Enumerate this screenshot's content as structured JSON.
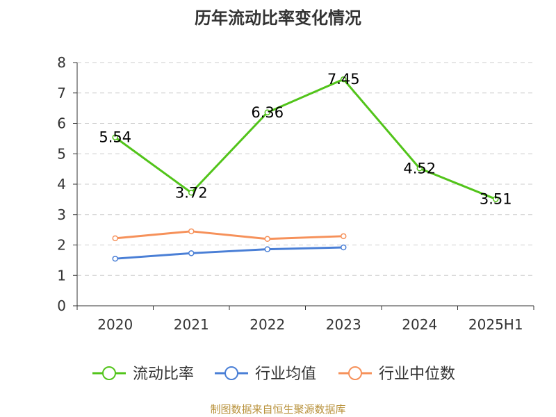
{
  "chart_data": {
    "type": "line",
    "title": "历年流动比率变化情况",
    "categories": [
      "2020",
      "2021",
      "2022",
      "2023",
      "2024",
      "2025H1"
    ],
    "ylim": [
      0,
      8
    ],
    "yticks": [
      "0",
      "1",
      "2",
      "3",
      "4",
      "5",
      "6",
      "7",
      "8"
    ],
    "grid": true,
    "legend_position": "bottom",
    "series": [
      {
        "name": "流动比率",
        "color": "#52c41a",
        "values": [
          5.54,
          3.72,
          6.36,
          7.45,
          4.52,
          3.51
        ],
        "labels": [
          "5.54",
          "3.72",
          "6.36",
          "7.45",
          "4.52",
          "3.51"
        ]
      },
      {
        "name": "行业均值",
        "color": "#4a7fd6",
        "values": [
          1.55,
          1.73,
          1.86,
          1.92,
          null,
          null
        ]
      },
      {
        "name": "行业中位数",
        "color": "#f6915a",
        "values": [
          2.22,
          2.45,
          2.2,
          2.29,
          null,
          null
        ]
      }
    ]
  },
  "footer": {
    "source": "制图数据来自恒生聚源数据库"
  }
}
